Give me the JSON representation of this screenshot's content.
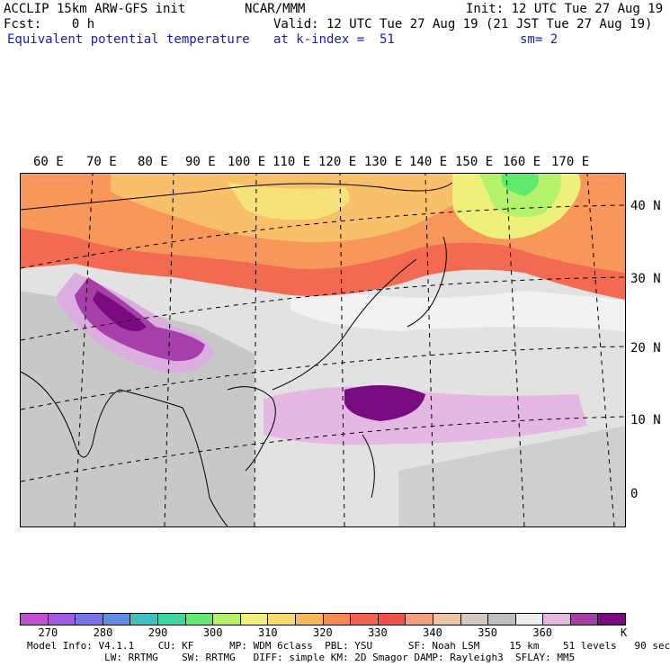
{
  "header": {
    "model": "ACCLIP 15km ARW-GFS init",
    "org": "NCAR/MMM",
    "init": "Init: 12 UTC Tue 27 Aug 19",
    "fcst": "Fcst:    0 h",
    "valid": "Valid: 12 UTC Tue 27 Aug 19 (21 JST Tue 27 Aug 19)",
    "field": "Equivalent potential temperature",
    "level": "at k-index =  51",
    "smooth": "sm= 2"
  },
  "lon_labels": [
    "60 E",
    "70 E",
    "80 E",
    "90 E",
    "100 E",
    "110 E",
    "120 E",
    "130 E",
    "140 E",
    "150 E",
    "160 E",
    "170 E"
  ],
  "lat_labels": [
    "40 N",
    "30 N",
    "20 N",
    "10 N",
    "0"
  ],
  "colorbar": {
    "colors": [
      "#c44fd0",
      "#a25be0",
      "#7a72e6",
      "#5f8de8",
      "#3fc1c1",
      "#3fd6a0",
      "#5fea6f",
      "#b4f26c",
      "#eef07a",
      "#f8dd6e",
      "#f9b85c",
      "#f78a55",
      "#f4614f",
      "#f2504a",
      "#f2a07e",
      "#f0c4a8",
      "#cfc9c2",
      "#bebebe",
      "#f0f0f0",
      "#e4b8e2",
      "#a640a8",
      "#7a0a80"
    ],
    "ticks": [
      "270",
      "280",
      "290",
      "300",
      "310",
      "320",
      "330",
      "340",
      "350",
      "360"
    ],
    "unit": "K"
  },
  "footer": {
    "line1": "Model Info: V4.1.1    CU: KF      MP: WDM 6class  PBL: YSU      SF: Noah LSM     15 km    51 levels   90 sec",
    "line2": "             LW: RRTMG    SW: RRTMG   DIFF: simple KM: 2D Smagor DAMP: Rayleigh3  SFLAY: MM5"
  }
}
